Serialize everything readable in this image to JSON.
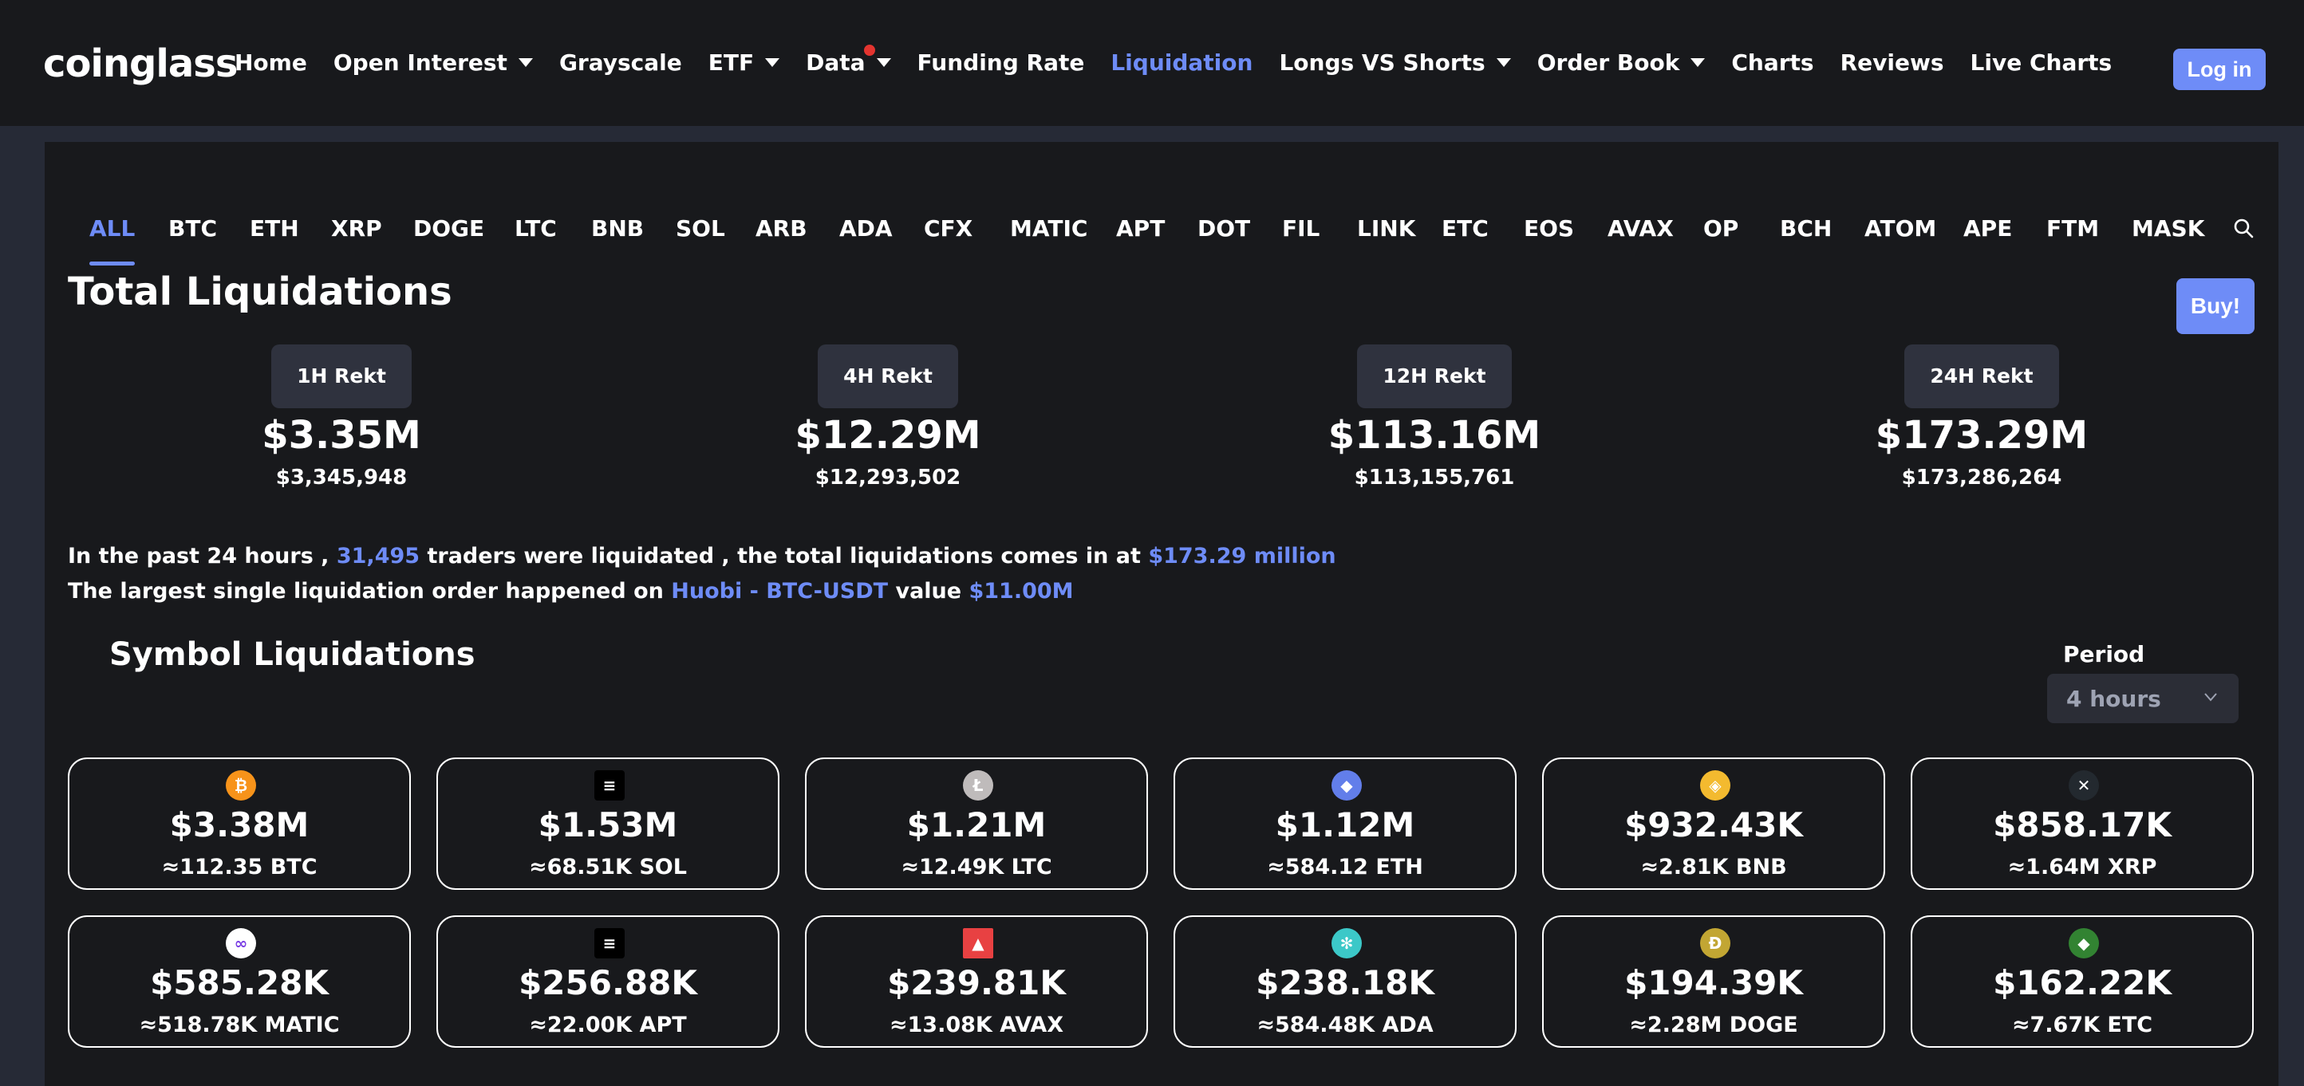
{
  "header": {
    "logo": "coinglass",
    "nav": [
      {
        "label": "Home",
        "dropdown": false
      },
      {
        "label": "Open Interest",
        "dropdown": true
      },
      {
        "label": "Grayscale",
        "dropdown": false
      },
      {
        "label": "ETF",
        "dropdown": true
      },
      {
        "label": "Data",
        "dropdown": true,
        "dot": true
      },
      {
        "label": "Funding Rate",
        "dropdown": false
      },
      {
        "label": "Liquidation",
        "dropdown": false,
        "active": true
      },
      {
        "label": "Longs VS Shorts",
        "dropdown": true
      },
      {
        "label": "Order Book",
        "dropdown": true
      },
      {
        "label": "Charts",
        "dropdown": false
      },
      {
        "label": "Reviews",
        "dropdown": false
      },
      {
        "label": "Live Charts",
        "dropdown": false
      }
    ],
    "login_label": "Log in"
  },
  "tabs": [
    "ALL",
    "BTC",
    "ETH",
    "XRP",
    "DOGE",
    "LTC",
    "BNB",
    "SOL",
    "ARB",
    "ADA",
    "CFX",
    "MATIC",
    "APT",
    "DOT",
    "FIL",
    "LINK",
    "ETC",
    "EOS",
    "AVAX",
    "OP",
    "BCH",
    "ATOM",
    "APE",
    "FTM",
    "MASK"
  ],
  "active_tab": "ALL",
  "total": {
    "title": "Total Liquidations",
    "buy_label": "Buy!",
    "stats": [
      {
        "label": "1H Rekt",
        "value": "$3.35M",
        "exact": "$3,345,948"
      },
      {
        "label": "4H Rekt",
        "value": "$12.29M",
        "exact": "$12,293,502"
      },
      {
        "label": "12H Rekt",
        "value": "$113.16M",
        "exact": "$113,155,761"
      },
      {
        "label": "24H Rekt",
        "value": "$173.29M",
        "exact": "$173,286,264"
      }
    ]
  },
  "summary": {
    "line1_a": "In the past 24 hours ,",
    "traders": "31,495",
    "line1_b": "traders were liquidated , the total liquidations comes in at",
    "total_amount": "$173.29 million",
    "line2_a": "The largest single liquidation order happened on",
    "exchange_pair": "Huobi - BTC-USDT",
    "line2_b": "value",
    "largest_value": "$11.00M"
  },
  "symbol": {
    "title": "Symbol Liquidations",
    "period_label": "Period",
    "period_value": "4 hours",
    "cards": [
      {
        "value": "$3.38M",
        "amount": "≈112.35 BTC",
        "icon": "btc-icon",
        "color": "#f7931a",
        "glyph": "₿"
      },
      {
        "value": "$1.53M",
        "amount": "≈68.51K SOL",
        "icon": "sol-icon",
        "color": "#000000",
        "glyph": "≡"
      },
      {
        "value": "$1.21M",
        "amount": "≈12.49K LTC",
        "icon": "ltc-icon",
        "color": "#bfbbbb",
        "glyph": "Ł"
      },
      {
        "value": "$1.12M",
        "amount": "≈584.12 ETH",
        "icon": "eth-icon",
        "color": "#627eea",
        "glyph": "◆"
      },
      {
        "value": "$932.43K",
        "amount": "≈2.81K BNB",
        "icon": "bnb-icon",
        "color": "#f3ba2f",
        "glyph": "◈"
      },
      {
        "value": "$858.17K",
        "amount": "≈1.64M XRP",
        "icon": "xrp-icon",
        "color": "#23292f",
        "glyph": "✕"
      },
      {
        "value": "$585.28K",
        "amount": "≈518.78K MATIC",
        "icon": "matic-icon",
        "color": "#ffffff",
        "glyph": "∞"
      },
      {
        "value": "$256.88K",
        "amount": "≈22.00K APT",
        "icon": "apt-icon",
        "color": "#000000",
        "glyph": "≡"
      },
      {
        "value": "$239.81K",
        "amount": "≈13.08K AVAX",
        "icon": "avax-icon",
        "color": "#e84142",
        "glyph": "▲"
      },
      {
        "value": "$238.18K",
        "amount": "≈584.48K ADA",
        "icon": "ada-icon",
        "color": "#3cc8c8",
        "glyph": "✻"
      },
      {
        "value": "$194.39K",
        "amount": "≈2.28M DOGE",
        "icon": "doge-icon",
        "color": "#c2a633",
        "glyph": "Ð"
      },
      {
        "value": "$162.22K",
        "amount": "≈7.67K ETC",
        "icon": "etc-icon",
        "color": "#328332",
        "glyph": "◆"
      }
    ]
  },
  "colors": {
    "accent": "#6e8cf7",
    "page_bg": "#262a36",
    "panel_bg": "#18191c"
  }
}
